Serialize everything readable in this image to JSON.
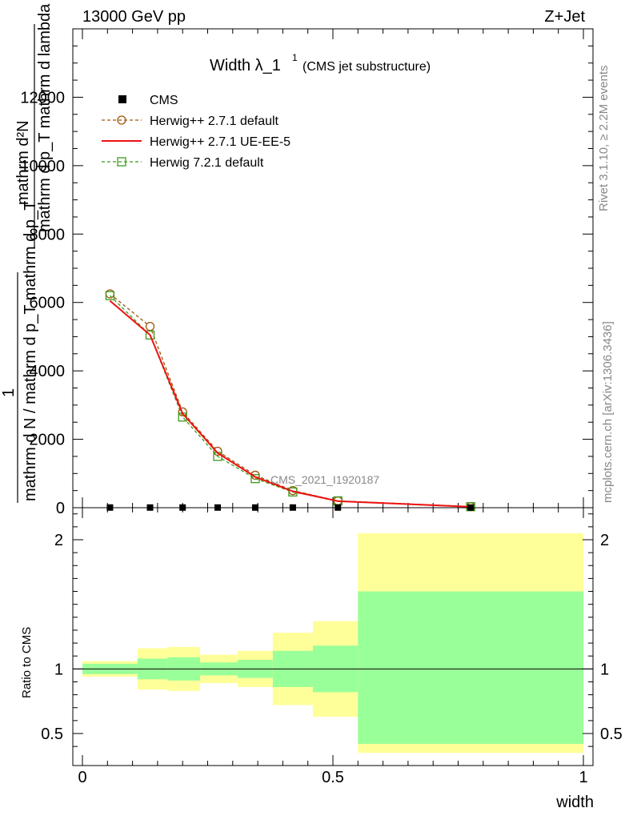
{
  "header": {
    "energy_label": "13000 GeV pp",
    "process_label": "Z+Jet"
  },
  "side_labels": {
    "rivet": "Rivet 3.1.10, ≥ 2.2M events",
    "mcplots": "mcplots.cern.ch [arXiv:1306.3436]"
  },
  "watermark": "CMS_2021_I1920187",
  "chart_data": [
    {
      "type": "line",
      "title": "Width λ_1",
      "title_sup": "1",
      "subtitle": "(CMS jet substructure)",
      "ylabel_top_numerator": "mathrm d²N",
      "ylabel_top_denominator": "mathrm d p_T mathrm d lambda",
      "ylabel_prefix": "1",
      "ylabel_bottom": "mathrm d N / mathrm d p_T mathrm d p_T",
      "xlim": [
        0,
        1
      ],
      "ylim": [
        0,
        14000
      ],
      "y_ticks": [
        0,
        2000,
        4000,
        6000,
        8000,
        10000,
        12000
      ],
      "y_tick_labels": [
        "0",
        "2000",
        "4000",
        "6000",
        "8000",
        "10000",
        "12000"
      ],
      "legend_position": "top-left",
      "legend": [
        {
          "label": "CMS",
          "color": "#000000",
          "marker": "square-filled",
          "style": "none"
        },
        {
          "label": "Herwig++ 2.7.1 default",
          "color": "#a0540a",
          "marker": "circle-open",
          "style": "dashed"
        },
        {
          "label": "Herwig++ 2.7.1 UE-EE-5",
          "color": "#ee1111",
          "marker": "none",
          "style": "solid"
        },
        {
          "label": "Herwig 7.2.1 default",
          "color": "#3c9a1c",
          "marker": "square-open",
          "style": "dashed"
        }
      ],
      "series": [
        {
          "name": "CMS",
          "x": [
            0.055,
            0.135,
            0.2,
            0.27,
            0.345,
            0.42,
            0.51,
            0.775
          ],
          "values": [
            5,
            5,
            5,
            5,
            5,
            5,
            5,
            5
          ]
        },
        {
          "name": "Herwig++ 2.7.1 default",
          "x": [
            0.055,
            0.135,
            0.2,
            0.27,
            0.345,
            0.42,
            0.51,
            0.775
          ],
          "values": [
            6250,
            5300,
            2800,
            1650,
            950,
            500,
            200,
            30
          ]
        },
        {
          "name": "Herwig++ 2.7.1 UE-EE-5",
          "x": [
            0.055,
            0.135,
            0.2,
            0.27,
            0.345,
            0.42,
            0.51,
            0.775
          ],
          "values": [
            6050,
            5050,
            2750,
            1600,
            900,
            480,
            190,
            25
          ]
        },
        {
          "name": "Herwig 7.2.1 default",
          "x": [
            0.055,
            0.135,
            0.2,
            0.27,
            0.345,
            0.42,
            0.51,
            0.775
          ],
          "values": [
            6200,
            5050,
            2650,
            1500,
            850,
            460,
            200,
            30
          ]
        }
      ]
    },
    {
      "type": "area",
      "ylabel": "Ratio to CMS",
      "xlabel": "width",
      "xlim": [
        0,
        1
      ],
      "ylim": [
        0.35,
        2.25
      ],
      "x_ticks": [
        0,
        0.5,
        1
      ],
      "x_tick_labels": [
        "0",
        "0.5",
        "1"
      ],
      "y_ticks": [
        0.5,
        1,
        2
      ],
      "y_tick_labels": [
        "0.5",
        "1",
        "2"
      ],
      "reference_line": 1,
      "band_colors": {
        "outer": "#ffff99",
        "inner": "#99ff99"
      },
      "bins": [
        {
          "x0": 0.0,
          "x1": 0.11,
          "outer": [
            0.94,
            1.06
          ],
          "inner": [
            0.96,
            1.04
          ]
        },
        {
          "x0": 0.11,
          "x1": 0.17,
          "outer": [
            0.84,
            1.16
          ],
          "inner": [
            0.92,
            1.08
          ]
        },
        {
          "x0": 0.17,
          "x1": 0.235,
          "outer": [
            0.83,
            1.17
          ],
          "inner": [
            0.91,
            1.09
          ]
        },
        {
          "x0": 0.235,
          "x1": 0.31,
          "outer": [
            0.89,
            1.11
          ],
          "inner": [
            0.95,
            1.05
          ]
        },
        {
          "x0": 0.31,
          "x1": 0.38,
          "outer": [
            0.86,
            1.14
          ],
          "inner": [
            0.93,
            1.07
          ]
        },
        {
          "x0": 0.38,
          "x1": 0.46,
          "outer": [
            0.72,
            1.28
          ],
          "inner": [
            0.86,
            1.14
          ]
        },
        {
          "x0": 0.46,
          "x1": 0.55,
          "outer": [
            0.63,
            1.37
          ],
          "inner": [
            0.82,
            1.18
          ]
        },
        {
          "x0": 0.55,
          "x1": 1.0,
          "outer": [
            0.35,
            2.05
          ],
          "inner": [
            0.42,
            1.6
          ]
        }
      ]
    }
  ]
}
